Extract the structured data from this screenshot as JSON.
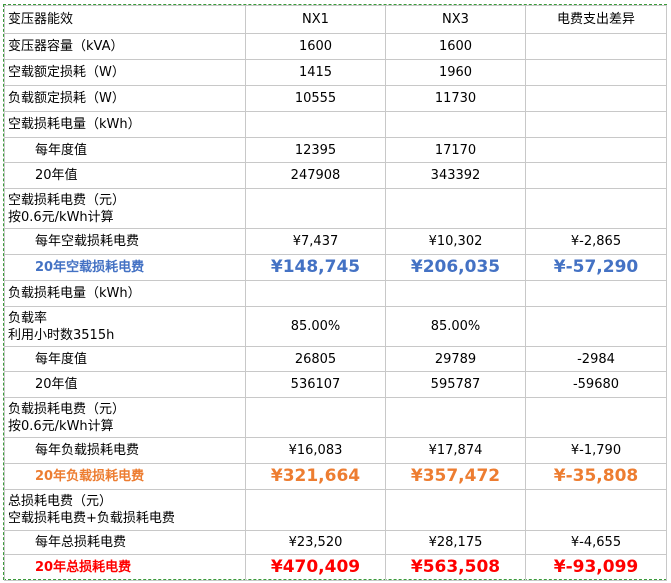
{
  "table": {
    "header": [
      "变压器能效",
      "NX1",
      "NX3",
      "电费支出差异"
    ],
    "rows": [
      [
        "变压器容量（kVA）",
        "1600",
        "1600",
        ""
      ],
      [
        "空载额定损耗（W）",
        "1415",
        "1960",
        ""
      ],
      [
        "负载额定损耗（W）",
        "10555",
        "11730",
        ""
      ],
      [
        "空载损耗电量（kWh）",
        "",
        "",
        ""
      ],
      [
        "每年度值",
        "12395",
        "17170",
        ""
      ],
      [
        "20年值",
        "247908",
        "343392",
        ""
      ],
      [
        "空载损耗电费（元）\n按0.6元/kWh计算",
        "",
        "",
        ""
      ],
      [
        "每年空载损耗电费",
        "¥7,437",
        "¥10,302",
        "¥-2,865"
      ],
      [
        "20年空载损耗电费",
        "¥148,745",
        "¥206,035",
        "¥-57,290"
      ],
      [
        "负载损耗电量（kWh）",
        "",
        "",
        ""
      ],
      [
        "负载率\n利用小时数3515h",
        "85.00%",
        "85.00%",
        ""
      ],
      [
        "每年度值",
        "26805",
        "29789",
        "-2984"
      ],
      [
        "20年值",
        "536107",
        "595787",
        "-59680"
      ],
      [
        "负载损耗电费（元）\n按0.6元/kWh计算",
        "",
        "",
        ""
      ],
      [
        "每年负载损耗电费",
        "¥16,083",
        "¥17,874",
        "¥-1,790"
      ],
      [
        "20年负载损耗电费",
        "¥321,664",
        "¥357,472",
        "¥-35,808"
      ],
      [
        "总损耗电费（元）\n空载损耗电费+负载损耗电费",
        "",
        "",
        ""
      ],
      [
        "每年总损耗电费",
        "¥23,520",
        "¥28,175",
        "¥-4,655"
      ],
      [
        "20年总损耗电费",
        "¥470,409",
        "¥563,508",
        "¥-93,099"
      ]
    ]
  }
}
